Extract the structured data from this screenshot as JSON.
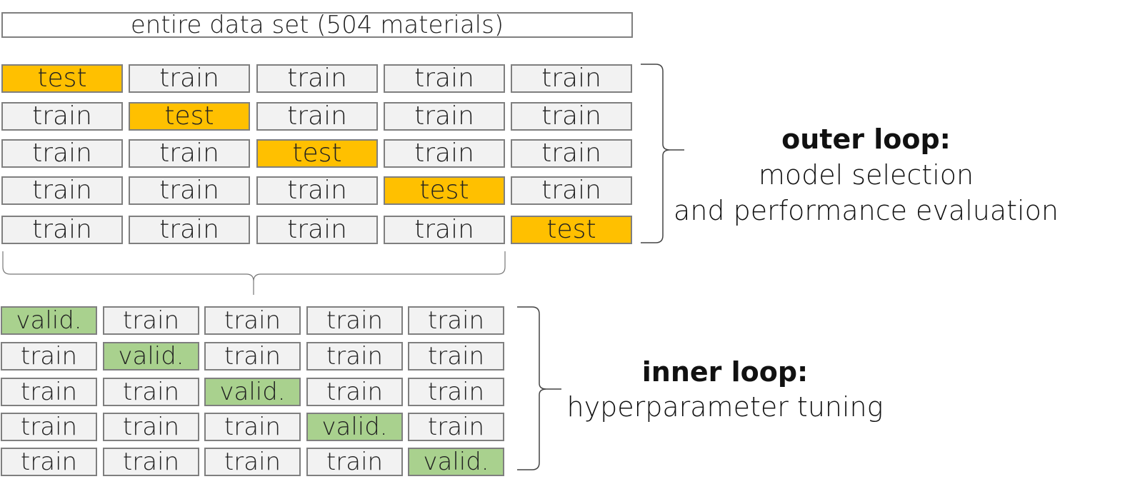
{
  "dataset_label": "entire data set (504 materials)",
  "outer": {
    "title": "outer loop:",
    "subtitle_lines": [
      "model selection",
      "and performance evaluation"
    ],
    "rows": [
      [
        "test",
        "train",
        "train",
        "train",
        "train"
      ],
      [
        "train",
        "test",
        "train",
        "train",
        "train"
      ],
      [
        "train",
        "train",
        "test",
        "train",
        "train"
      ],
      [
        "train",
        "train",
        "train",
        "test",
        "train"
      ],
      [
        "train",
        "train",
        "train",
        "train",
        "test"
      ]
    ]
  },
  "inner": {
    "title": "inner loop:",
    "subtitle": "hyperparameter tuning",
    "rows": [
      [
        "valid.",
        "train",
        "train",
        "train",
        "train"
      ],
      [
        "train",
        "valid.",
        "train",
        "train",
        "train"
      ],
      [
        "train",
        "train",
        "valid.",
        "train",
        "train"
      ],
      [
        "train",
        "train",
        "train",
        "valid.",
        "train"
      ],
      [
        "train",
        "train",
        "train",
        "train",
        "valid."
      ]
    ]
  },
  "colors": {
    "test": "#ffc000",
    "valid": "#a9d18e",
    "train": "#f2f2f2",
    "border": "#7f7f7f"
  }
}
